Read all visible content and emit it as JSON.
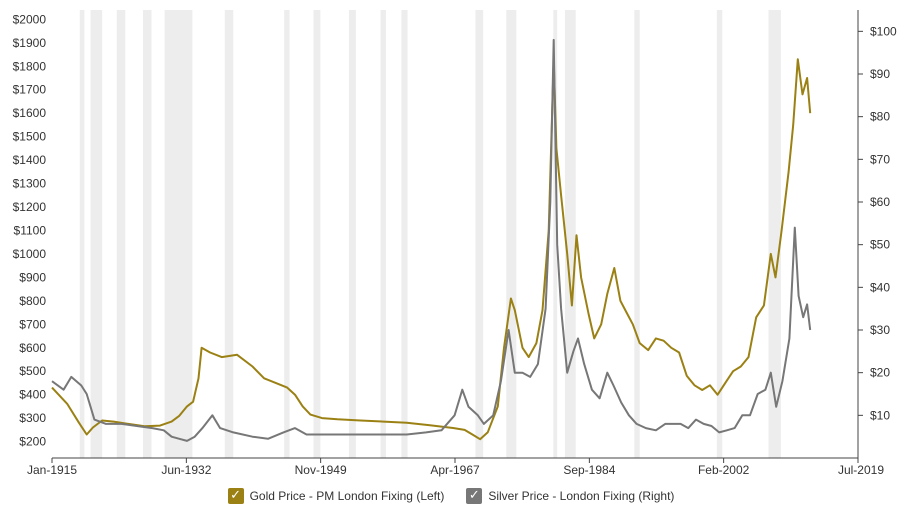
{
  "chart_data": {
    "type": "line",
    "title": "",
    "xlabel": "",
    "ylabel_left": "",
    "ylabel_right": "",
    "x_range": [
      1915.0,
      2019.5
    ],
    "left_ylim": [
      130,
      2040
    ],
    "right_ylim": [
      0,
      105
    ],
    "x_ticks": [
      {
        "label": "Jan-1915",
        "x": 1915.0
      },
      {
        "label": "Jun-1932",
        "x": 1932.42
      },
      {
        "label": "Nov-1949",
        "x": 1949.83
      },
      {
        "label": "Apr-1967",
        "x": 1967.25
      },
      {
        "label": "Sep-1984",
        "x": 1984.67
      },
      {
        "label": "Feb-2002",
        "x": 2002.08
      },
      {
        "label": "Jul-2019",
        "x": 2019.5
      }
    ],
    "left_ticks": [
      {
        "label": "$200",
        "value": 200
      },
      {
        "label": "$300",
        "value": 300
      },
      {
        "label": "$400",
        "value": 400
      },
      {
        "label": "$500",
        "value": 500
      },
      {
        "label": "$600",
        "value": 600
      },
      {
        "label": "$700",
        "value": 700
      },
      {
        "label": "$800",
        "value": 800
      },
      {
        "label": "$900",
        "value": 900
      },
      {
        "label": "$1000",
        "value": 1000
      },
      {
        "label": "$1100",
        "value": 1100
      },
      {
        "label": "$1200",
        "value": 1200
      },
      {
        "label": "$1300",
        "value": 1300
      },
      {
        "label": "$1400",
        "value": 1400
      },
      {
        "label": "$1500",
        "value": 1500
      },
      {
        "label": "$1600",
        "value": 1600
      },
      {
        "label": "$1700",
        "value": 1700
      },
      {
        "label": "$1800",
        "value": 1800
      },
      {
        "label": "$1900",
        "value": 1900
      },
      {
        "label": "$2000",
        "value": 2000
      }
    ],
    "right_ticks": [
      {
        "label": "$10",
        "value": 10
      },
      {
        "label": "$20",
        "value": 20
      },
      {
        "label": "$30",
        "value": 30
      },
      {
        "label": "$40",
        "value": 40
      },
      {
        "label": "$50",
        "value": 50
      },
      {
        "label": "$60",
        "value": 60
      },
      {
        "label": "$70",
        "value": 70
      },
      {
        "label": "$80",
        "value": 80
      },
      {
        "label": "$90",
        "value": 90
      },
      {
        "label": "$100",
        "value": 100
      }
    ],
    "recessions": [
      [
        1918.6,
        1919.2
      ],
      [
        1920.0,
        1921.5
      ],
      [
        1923.4,
        1924.5
      ],
      [
        1926.8,
        1927.9
      ],
      [
        1929.6,
        1933.2
      ],
      [
        1937.4,
        1938.5
      ],
      [
        1945.1,
        1945.8
      ],
      [
        1948.9,
        1949.8
      ],
      [
        1953.5,
        1954.4
      ],
      [
        1957.6,
        1958.3
      ],
      [
        1960.3,
        1961.1
      ],
      [
        1969.9,
        1970.9
      ],
      [
        1973.9,
        1975.2
      ],
      [
        1980.0,
        1980.5
      ],
      [
        1981.5,
        1982.9
      ],
      [
        1990.5,
        1991.2
      ],
      [
        2001.2,
        2001.9
      ],
      [
        2007.9,
        2009.5
      ]
    ],
    "legend_position": "bottom-center",
    "grid": false,
    "series": [
      {
        "name": "Gold Price - PM London Fixing (Left)",
        "axis": "left",
        "color": "#9b8114",
        "points": [
          [
            1915.0,
            430
          ],
          [
            1917.0,
            360
          ],
          [
            1918.5,
            280
          ],
          [
            1919.5,
            230
          ],
          [
            1920.3,
            260
          ],
          [
            1921.5,
            290
          ],
          [
            1923.0,
            285
          ],
          [
            1925.0,
            275
          ],
          [
            1927.0,
            265
          ],
          [
            1929.0,
            268
          ],
          [
            1930.5,
            285
          ],
          [
            1931.5,
            310
          ],
          [
            1932.5,
            350
          ],
          [
            1933.3,
            370
          ],
          [
            1934.0,
            470
          ],
          [
            1934.4,
            600
          ],
          [
            1935.5,
            580
          ],
          [
            1937.0,
            560
          ],
          [
            1939.0,
            570
          ],
          [
            1941.0,
            520
          ],
          [
            1942.5,
            470
          ],
          [
            1944.0,
            450
          ],
          [
            1945.5,
            430
          ],
          [
            1946.5,
            400
          ],
          [
            1947.5,
            350
          ],
          [
            1948.5,
            315
          ],
          [
            1950.0,
            300
          ],
          [
            1952.0,
            295
          ],
          [
            1955.0,
            290
          ],
          [
            1958.0,
            285
          ],
          [
            1961.0,
            280
          ],
          [
            1964.0,
            270
          ],
          [
            1967.0,
            258
          ],
          [
            1968.5,
            250
          ],
          [
            1969.5,
            230
          ],
          [
            1970.5,
            210
          ],
          [
            1971.5,
            240
          ],
          [
            1972.8,
            350
          ],
          [
            1973.6,
            600
          ],
          [
            1974.5,
            810
          ],
          [
            1975.0,
            760
          ],
          [
            1976.0,
            600
          ],
          [
            1976.8,
            560
          ],
          [
            1977.8,
            620
          ],
          [
            1978.6,
            760
          ],
          [
            1979.4,
            1100
          ],
          [
            1980.05,
            1830
          ],
          [
            1980.4,
            1450
          ],
          [
            1981.0,
            1250
          ],
          [
            1981.8,
            1000
          ],
          [
            1982.4,
            780
          ],
          [
            1983.0,
            1080
          ],
          [
            1983.6,
            900
          ],
          [
            1984.6,
            740
          ],
          [
            1985.3,
            640
          ],
          [
            1986.2,
            700
          ],
          [
            1987.0,
            830
          ],
          [
            1987.9,
            940
          ],
          [
            1988.7,
            800
          ],
          [
            1989.5,
            750
          ],
          [
            1990.3,
            700
          ],
          [
            1991.2,
            620
          ],
          [
            1992.3,
            590
          ],
          [
            1993.3,
            640
          ],
          [
            1994.3,
            630
          ],
          [
            1995.3,
            600
          ],
          [
            1996.3,
            580
          ],
          [
            1997.3,
            480
          ],
          [
            1998.3,
            440
          ],
          [
            1999.3,
            420
          ],
          [
            2000.3,
            440
          ],
          [
            2001.3,
            400
          ],
          [
            2002.3,
            450
          ],
          [
            2003.3,
            500
          ],
          [
            2004.3,
            520
          ],
          [
            2005.3,
            560
          ],
          [
            2006.3,
            730
          ],
          [
            2007.3,
            780
          ],
          [
            2008.2,
            1000
          ],
          [
            2008.8,
            900
          ],
          [
            2009.6,
            1100
          ],
          [
            2010.5,
            1350
          ],
          [
            2011.1,
            1550
          ],
          [
            2011.7,
            1830
          ],
          [
            2012.3,
            1680
          ],
          [
            2012.9,
            1750
          ],
          [
            2013.3,
            1600
          ]
        ]
      },
      {
        "name": "Silver Price - London Fixing (Right)",
        "axis": "right",
        "color": "#777777",
        "points": [
          [
            1915.0,
            18
          ],
          [
            1916.5,
            16
          ],
          [
            1917.5,
            19
          ],
          [
            1918.8,
            17
          ],
          [
            1919.5,
            15
          ],
          [
            1920.5,
            9
          ],
          [
            1922.0,
            8
          ],
          [
            1924.0,
            8
          ],
          [
            1926.0,
            7.5
          ],
          [
            1928.0,
            7
          ],
          [
            1929.5,
            6.5
          ],
          [
            1930.5,
            5
          ],
          [
            1931.5,
            4.5
          ],
          [
            1932.5,
            4
          ],
          [
            1933.5,
            5
          ],
          [
            1934.5,
            7
          ],
          [
            1935.8,
            10
          ],
          [
            1936.8,
            7
          ],
          [
            1938.5,
            6
          ],
          [
            1941.0,
            5
          ],
          [
            1943.0,
            4.5
          ],
          [
            1945.0,
            6
          ],
          [
            1946.5,
            7
          ],
          [
            1948.0,
            5.5
          ],
          [
            1950.0,
            5.5
          ],
          [
            1952.0,
            5.5
          ],
          [
            1955.0,
            5.5
          ],
          [
            1958.0,
            5.5
          ],
          [
            1961.0,
            5.5
          ],
          [
            1963.5,
            6
          ],
          [
            1965.5,
            6.5
          ],
          [
            1967.2,
            10
          ],
          [
            1968.2,
            16
          ],
          [
            1969.0,
            12
          ],
          [
            1970.2,
            10
          ],
          [
            1971.0,
            8
          ],
          [
            1972.2,
            10
          ],
          [
            1973.2,
            18
          ],
          [
            1974.2,
            30
          ],
          [
            1975.0,
            20
          ],
          [
            1976.0,
            20
          ],
          [
            1977.0,
            19
          ],
          [
            1978.0,
            22
          ],
          [
            1979.0,
            35
          ],
          [
            1979.6,
            60
          ],
          [
            1980.05,
            98
          ],
          [
            1980.5,
            50
          ],
          [
            1981.0,
            35
          ],
          [
            1981.8,
            20
          ],
          [
            1982.6,
            25
          ],
          [
            1983.2,
            28
          ],
          [
            1984.0,
            22
          ],
          [
            1985.0,
            16
          ],
          [
            1986.0,
            14
          ],
          [
            1987.0,
            20
          ],
          [
            1987.8,
            17
          ],
          [
            1988.8,
            13
          ],
          [
            1989.8,
            10
          ],
          [
            1990.8,
            8
          ],
          [
            1992.0,
            7
          ],
          [
            1993.3,
            6.5
          ],
          [
            1994.5,
            8
          ],
          [
            1995.5,
            8
          ],
          [
            1996.5,
            8
          ],
          [
            1997.5,
            7
          ],
          [
            1998.5,
            9
          ],
          [
            1999.5,
            8
          ],
          [
            2000.5,
            7.5
          ],
          [
            2001.5,
            6
          ],
          [
            2002.5,
            6.5
          ],
          [
            2003.5,
            7
          ],
          [
            2004.5,
            10
          ],
          [
            2005.5,
            10
          ],
          [
            2006.5,
            15
          ],
          [
            2007.5,
            16
          ],
          [
            2008.2,
            20
          ],
          [
            2008.9,
            12
          ],
          [
            2009.7,
            18
          ],
          [
            2010.6,
            28
          ],
          [
            2011.3,
            54
          ],
          [
            2011.8,
            38
          ],
          [
            2012.4,
            33
          ],
          [
            2012.9,
            36
          ],
          [
            2013.3,
            30
          ]
        ]
      }
    ]
  },
  "legend": [
    {
      "label": "Gold Price - PM London Fixing (Left)",
      "color": "#9b8114"
    },
    {
      "label": "Silver Price - London Fixing (Right)",
      "color": "#777777"
    }
  ]
}
